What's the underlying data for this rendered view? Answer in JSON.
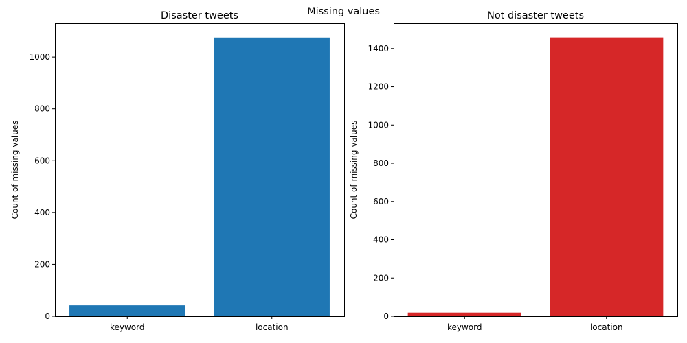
{
  "figure": {
    "suptitle": "Missing values"
  },
  "chart_data": [
    {
      "type": "bar",
      "title": "Disaster tweets",
      "xlabel": "",
      "ylabel": "Count of missing values",
      "categories": [
        "keyword",
        "location"
      ],
      "values": [
        42,
        1075
      ],
      "ylim": [
        0,
        1130
      ],
      "yticks": [
        0,
        200,
        400,
        600,
        800,
        1000
      ],
      "color": "#1f77b4",
      "grid": false
    },
    {
      "type": "bar",
      "title": "Not disaster tweets",
      "xlabel": "",
      "ylabel": "Count of missing values",
      "categories": [
        "keyword",
        "location"
      ],
      "values": [
        19,
        1458
      ],
      "ylim": [
        0,
        1532
      ],
      "yticks": [
        0,
        200,
        400,
        600,
        800,
        1000,
        1200,
        1400
      ],
      "color": "#d62728",
      "grid": false
    }
  ]
}
